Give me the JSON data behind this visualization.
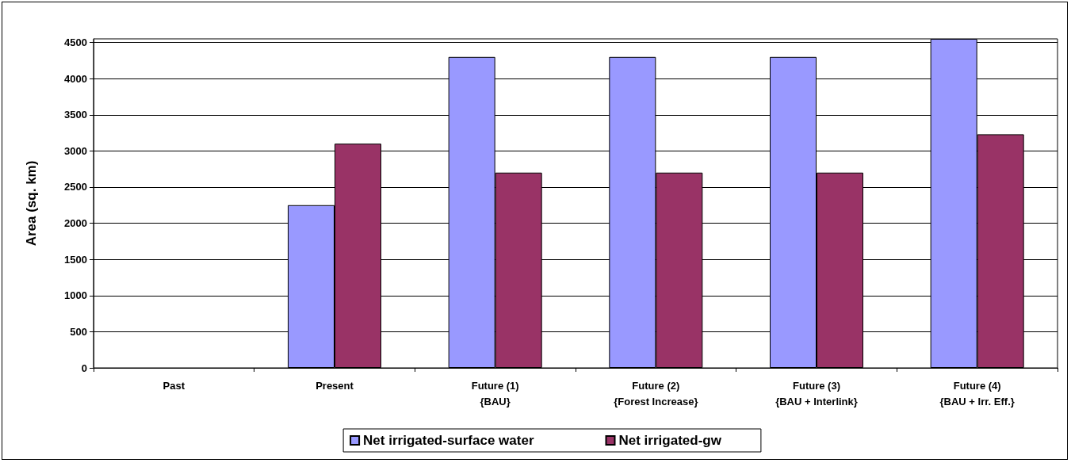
{
  "chart_data": {
    "type": "bar",
    "ylabel": "Area (sq. km)",
    "categories": [
      "Past",
      "Present",
      "Future (1)\n{BAU}",
      "Future (2)\n{Forest Increase}",
      "Future (3)\n{BAU + Interlink}",
      "Future (4)\n{BAU + Irr. Eff.}"
    ],
    "series": [
      {
        "name": "Net irrigated-surface water",
        "color": "#9999ff",
        "values": [
          null,
          2250,
          4300,
          4300,
          4300,
          4550
        ]
      },
      {
        "name": "Net irrigated-gw",
        "color": "#993366",
        "values": [
          null,
          3100,
          2700,
          2700,
          2700,
          3230
        ]
      }
    ],
    "ylim": [
      0,
      4550
    ],
    "yticks": [
      0,
      500,
      1000,
      1500,
      2000,
      2500,
      3000,
      3500,
      4000,
      4500
    ],
    "grid": "y",
    "legend": "bottom"
  }
}
